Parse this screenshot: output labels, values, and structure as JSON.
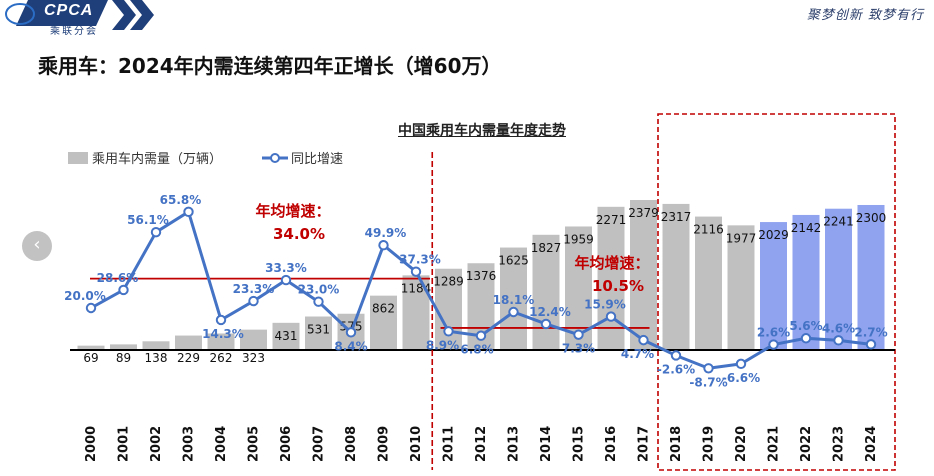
{
  "header": {
    "logo_text": "CPCA",
    "logo_sub": "乘联分会",
    "slogan": "聚梦创新 致梦有行"
  },
  "page_title": "乘用车：2024年内需连续第四年正增长（增60万）",
  "colors": {
    "bar_gray": "#c0c0c0",
    "bar_blue": "#8fa3ef",
    "line_blue": "#4472c4",
    "label_blue": "#4472c4",
    "avg_red": "#c00000",
    "brand_navy": "#1f3f7a"
  },
  "chart_data": {
    "type": "bar",
    "title": "中国乘用车内需量年度走势",
    "legend_position": "top-left",
    "categories": [
      "2000",
      "2001",
      "2002",
      "2003",
      "2004",
      "2005",
      "2006",
      "2007",
      "2008",
      "2009",
      "2010",
      "2011",
      "2012",
      "2013",
      "2014",
      "2015",
      "2016",
      "2017",
      "2018",
      "2019",
      "2020",
      "2021",
      "2022",
      "2023",
      "2024"
    ],
    "series": [
      {
        "name": "乘用车内需量（万辆）",
        "type": "bar",
        "values": [
          69,
          89,
          138,
          229,
          262,
          323,
          431,
          531,
          575,
          862,
          1184,
          1289,
          1376,
          1625,
          1827,
          1959,
          2271,
          2379,
          2317,
          2116,
          1977,
          2029,
          2142,
          2241,
          2300
        ],
        "labels": [
          "69",
          "89",
          "138",
          "229",
          "262",
          "323",
          "431",
          "531",
          "575",
          "862",
          "1184",
          "1289",
          "1376",
          "1625",
          "1827",
          "1959",
          "2271",
          "2379",
          "2317",
          "2116",
          "1977",
          "2029",
          "2142",
          "2241",
          "2300"
        ],
        "highlight_from_index": 21
      },
      {
        "name": "同比增速",
        "type": "line",
        "values": [
          20.0,
          28.6,
          56.1,
          65.8,
          14.3,
          23.3,
          33.3,
          23.0,
          8.4,
          49.9,
          37.3,
          8.9,
          6.8,
          18.1,
          12.4,
          7.3,
          15.9,
          4.7,
          -2.6,
          -8.7,
          -6.6,
          2.6,
          5.6,
          4.6,
          2.7
        ],
        "labels": [
          "20.0%",
          "28.6%",
          "56.1%",
          "65.8%",
          "14.3%",
          "23.3%",
          "33.3%",
          "23.0%",
          "8.4%",
          "49.9%",
          "37.3%",
          "8.9%",
          "6.8%",
          "18.1%",
          "12.4%",
          "7.3%",
          "15.9%",
          "4.7%",
          "-2.6%",
          "-8.7%",
          "-6.6%",
          "2.6%",
          "5.6%",
          "4.6%",
          "2.7%"
        ]
      }
    ],
    "annotations": [
      {
        "title": "年均增速：",
        "value": "34.0%",
        "avg": 34.0,
        "from": "2000",
        "to": "2010"
      },
      {
        "title": "年均增速：",
        "value": "10.5%",
        "avg": 10.5,
        "from": "2011",
        "to": "2017"
      }
    ],
    "divider_after": "2010",
    "highlight_box_from": "2018",
    "grid": false
  }
}
